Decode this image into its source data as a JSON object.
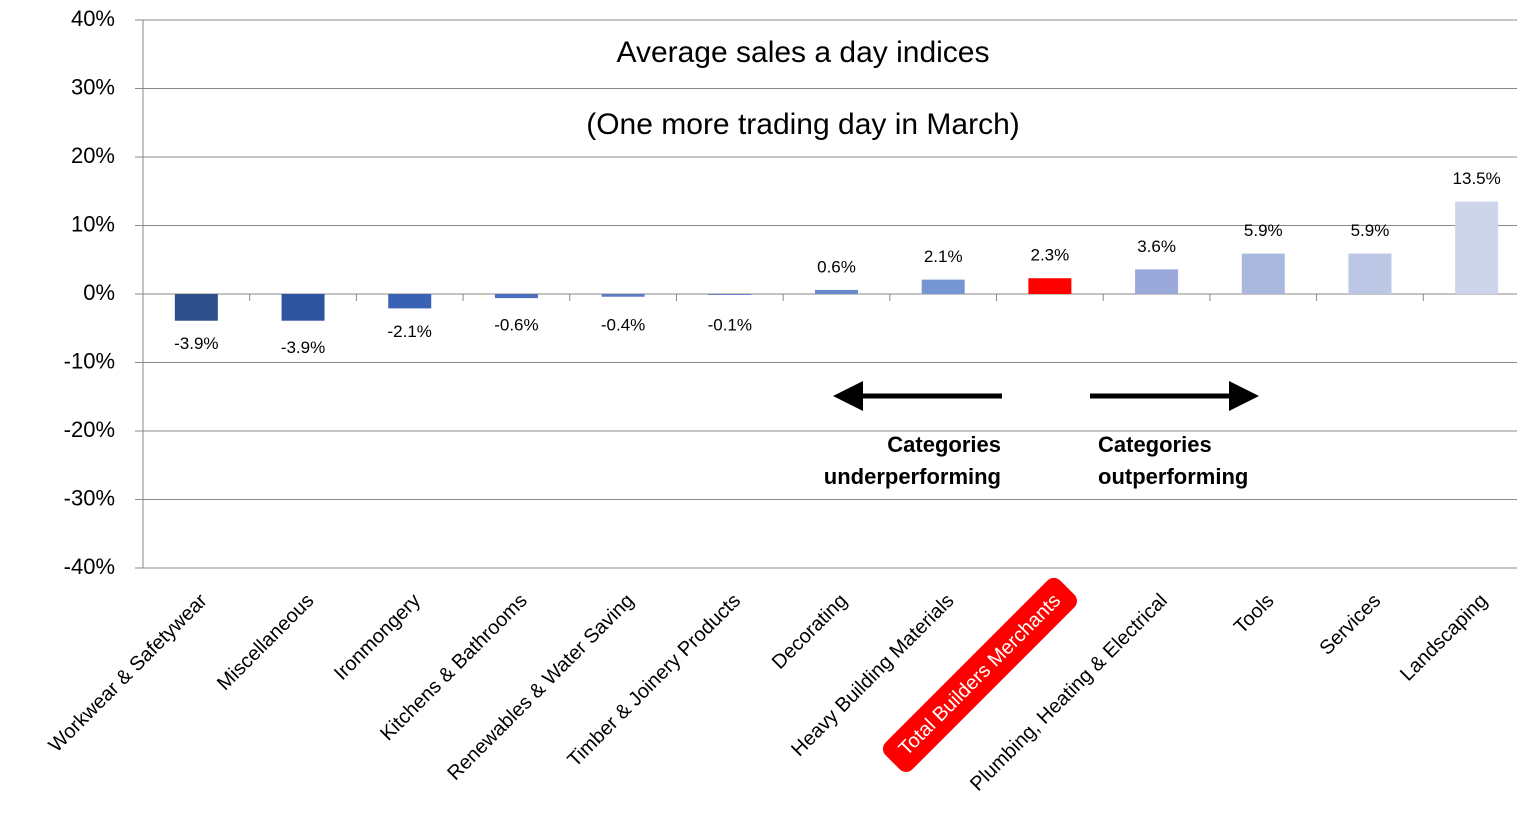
{
  "chart_data": {
    "type": "bar",
    "title": "Average sales a day indices",
    "subtitle": "(One more trading day in March)",
    "categories": [
      "Workwear & Safetywear",
      "Miscellaneous",
      "Ironmongery",
      "Kitchens & Bathrooms",
      "Renewables & Water Saving",
      "Timber & Joinery Products",
      "Decorating",
      "Heavy Building Materials",
      "Total Builders Merchants",
      "Plumbing, Heating & Electrical",
      "Tools",
      "Services",
      "Landscaping"
    ],
    "values": [
      -3.9,
      -3.9,
      -2.1,
      -0.6,
      -0.4,
      -0.1,
      0.6,
      2.1,
      2.3,
      3.6,
      5.9,
      5.9,
      13.5
    ],
    "value_labels": [
      "-3.9%",
      "-3.9%",
      "-2.1%",
      "-0.6%",
      "-0.4%",
      "-0.1%",
      "0.6%",
      "2.1%",
      "2.3%",
      "3.6%",
      "5.9%",
      "5.9%",
      "13.5%"
    ],
    "colors": [
      "#2f4f8a",
      "#2f55a0",
      "#3a62b4",
      "#4a70be",
      "#5a7cc4",
      "#6585c8",
      "#6a8ccf",
      "#7595d3",
      "#ff0000",
      "#9aa9d9",
      "#aab8df",
      "#bcc6e5",
      "#cdd5ea"
    ],
    "highlight_index": 8,
    "highlight_color": "#ff0000",
    "ylim": [
      -40,
      40
    ],
    "yticks": [
      {
        "value": -40,
        "label": "-40%"
      },
      {
        "value": -30,
        "label": "-30%"
      },
      {
        "value": -20,
        "label": "-20%"
      },
      {
        "value": -10,
        "label": "-10%"
      },
      {
        "value": 0,
        "label": "0%"
      },
      {
        "value": 10,
        "label": "10%"
      },
      {
        "value": 20,
        "label": "20%"
      },
      {
        "value": 30,
        "label": "30%"
      },
      {
        "value": 40,
        "label": "40%"
      }
    ],
    "grid": true,
    "annotations": [
      {
        "lines": [
          "Categories",
          "underperforming"
        ]
      },
      {
        "lines": [
          "Categories",
          "outperforming"
        ]
      }
    ]
  }
}
